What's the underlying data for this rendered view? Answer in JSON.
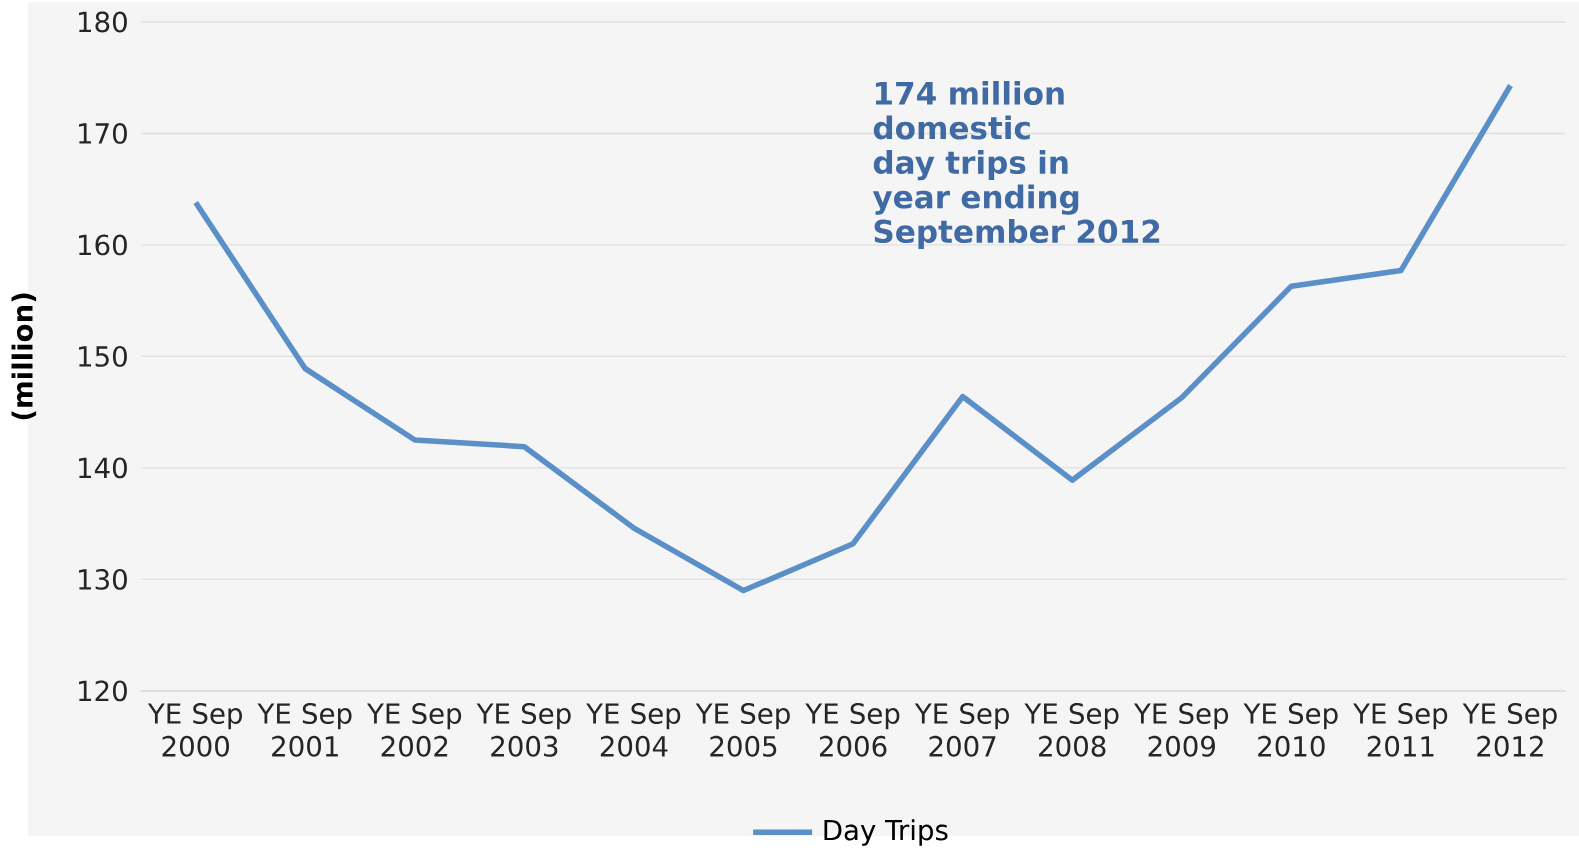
{
  "chart_data": {
    "type": "line",
    "ylabel": "(million)",
    "categories": [
      "YE Sep 2000",
      "YE Sep 2001",
      "YE Sep 2002",
      "YE Sep 2003",
      "YE Sep 2004",
      "YE Sep 2005",
      "YE Sep 2006",
      "YE Sep 2007",
      "YE Sep 2008",
      "YE Sep 2009",
      "YE Sep 2010",
      "YE Sep 2011",
      "YE Sep 2012"
    ],
    "series": [
      {
        "name": "Day Trips",
        "color": "#5b8fc7",
        "values": [
          163.8,
          148.9,
          142.5,
          141.9,
          134.6,
          129.0,
          133.2,
          146.4,
          138.9,
          146.3,
          156.3,
          157.7,
          174.3
        ]
      }
    ],
    "ylim": [
      120,
      180
    ],
    "yticks": [
      120,
      130,
      140,
      150,
      160,
      170,
      180
    ],
    "grid": "y",
    "legend": "bottom",
    "marker": "none",
    "line_style": "solid",
    "annotations": [
      "174 million domestic day trips in year ending September 2012"
    ]
  }
}
